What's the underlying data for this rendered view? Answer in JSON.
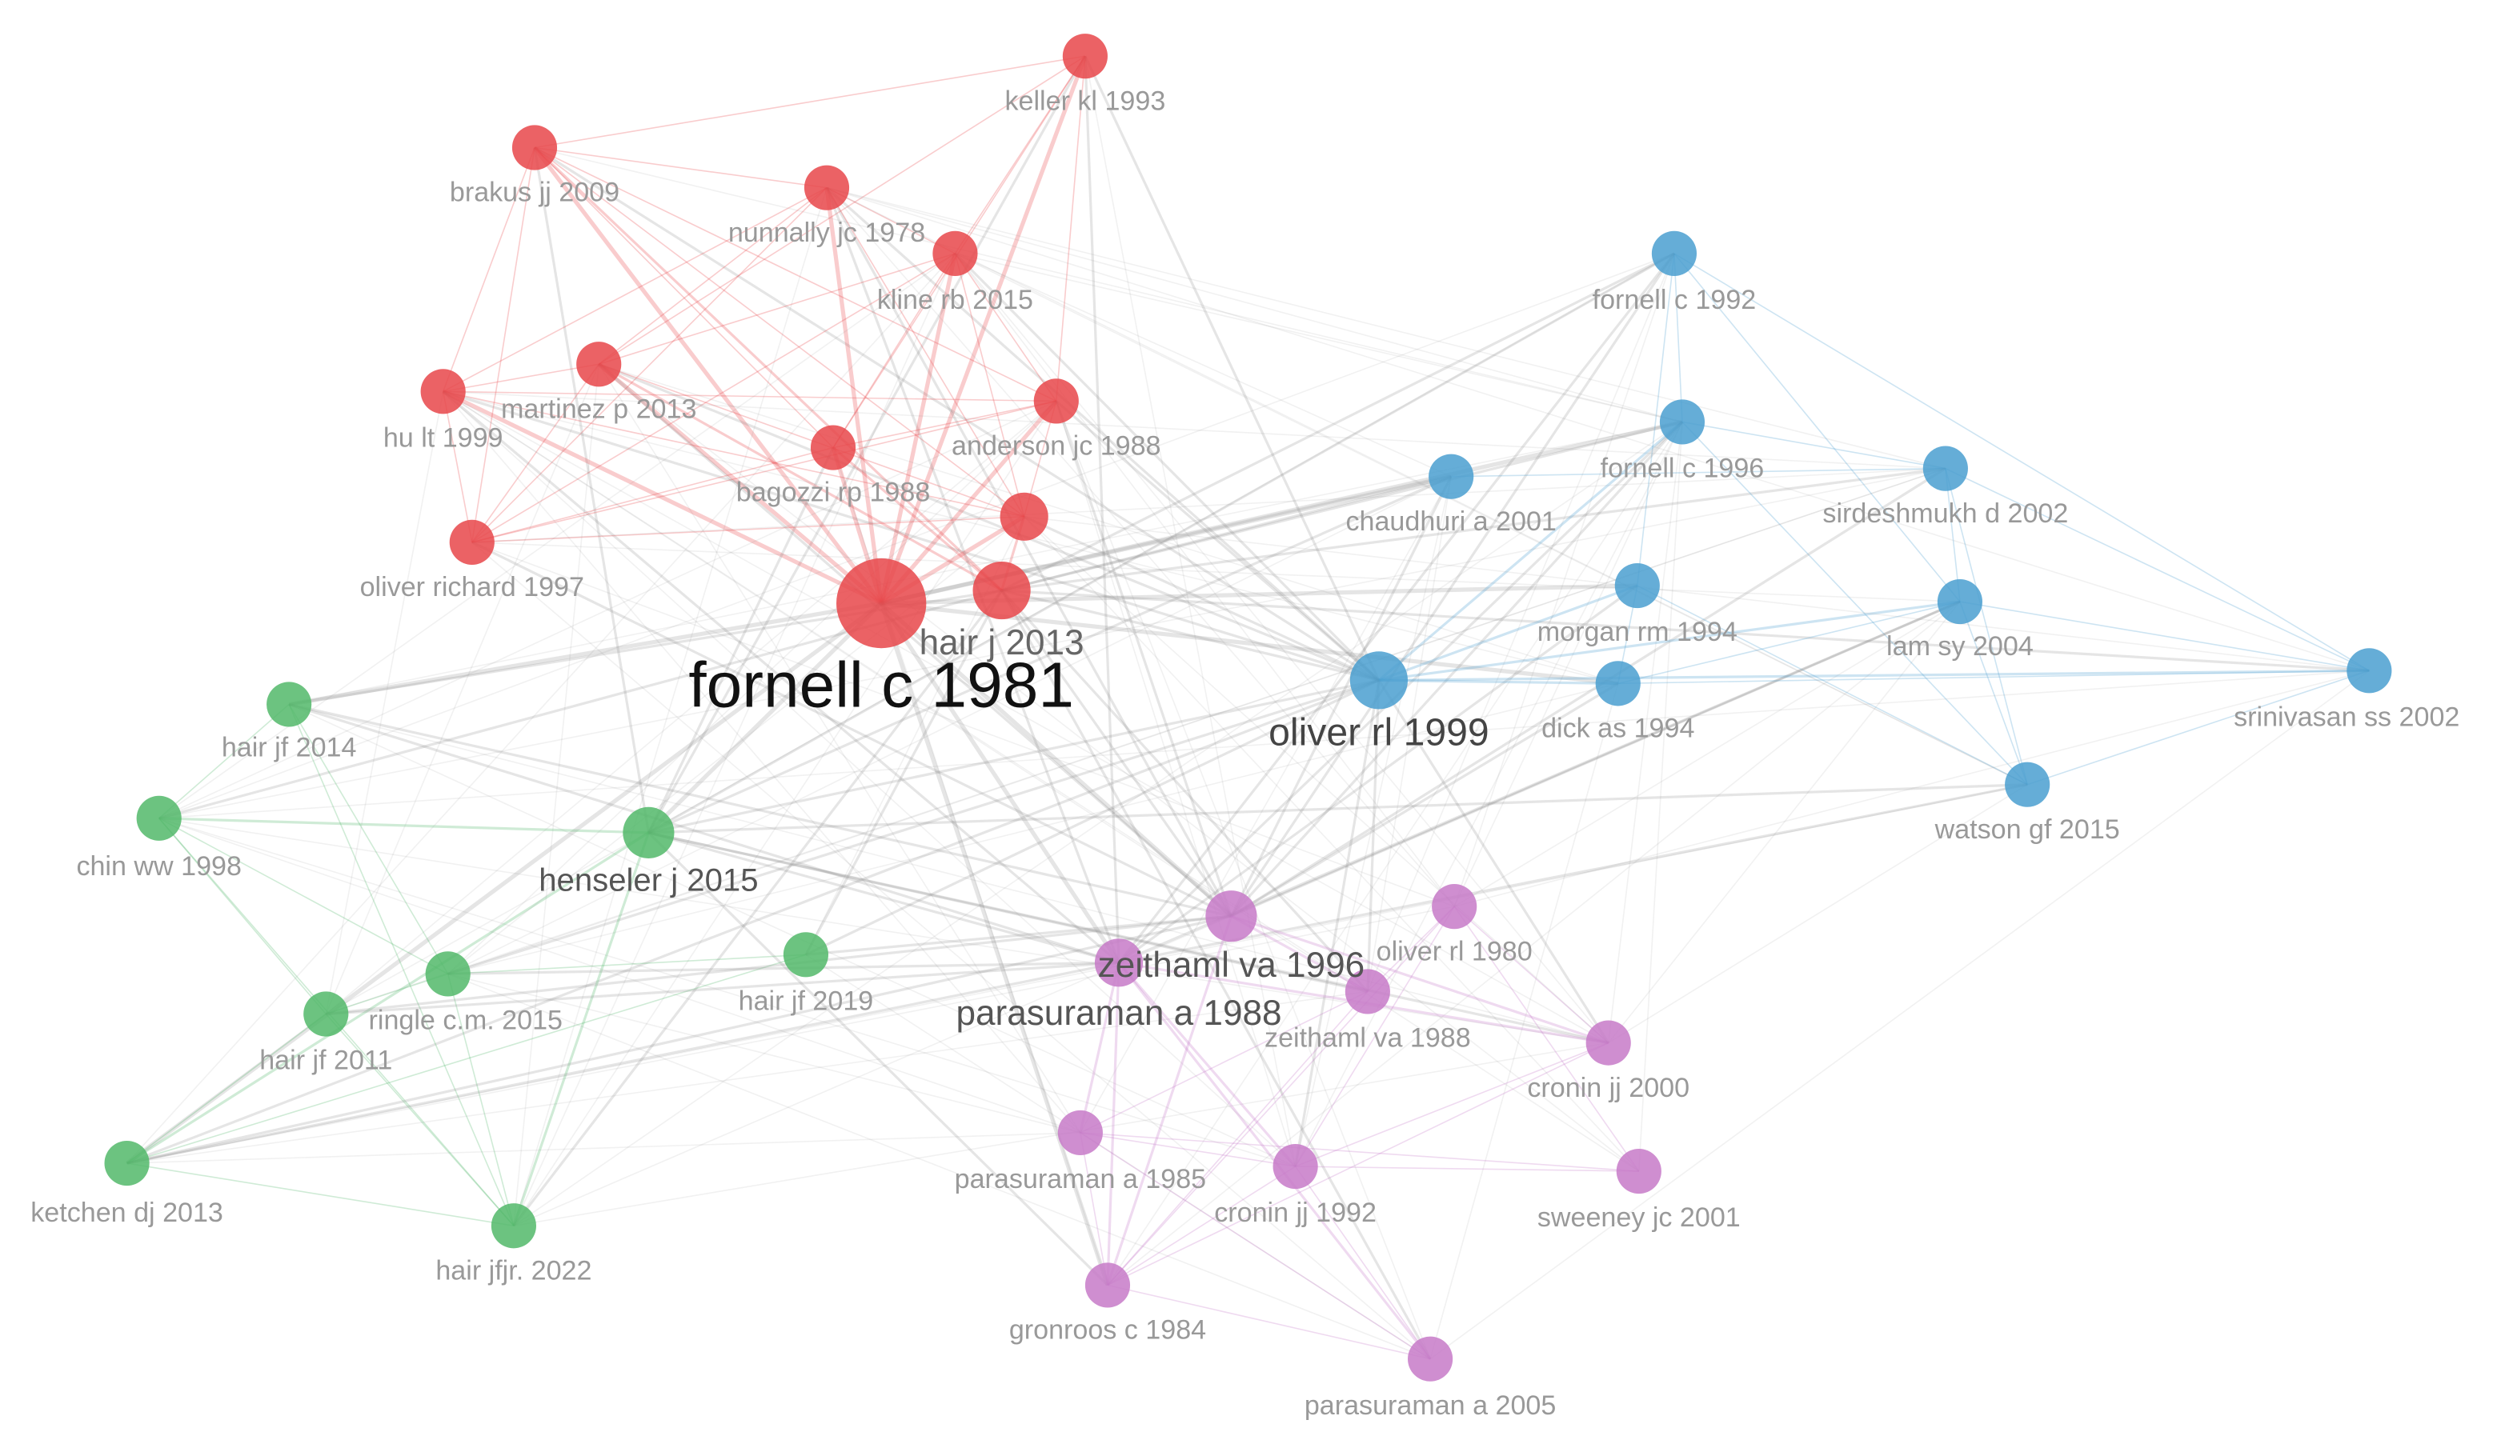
{
  "nodes": [
    {
      "label": "keller kl 1993"
    },
    {
      "label": "brakus jj 2009"
    },
    {
      "label": "nunnally jc 1978"
    },
    {
      "label": "kline rb 2015"
    },
    {
      "label": "martinez p 2013"
    },
    {
      "label": "hu lt 1999"
    },
    {
      "label": "anderson jc 1988"
    },
    {
      "label": "bagozzi rp 1988"
    },
    {
      "label": "oliver richard 1997"
    },
    {
      "label": "hair j 2013"
    },
    {
      "label": "fornell c 1981"
    },
    {
      "label": "fornell c 1992"
    },
    {
      "label": "fornell c 1996"
    },
    {
      "label": "sirdeshmukh d 2002"
    },
    {
      "label": "chaudhuri a 2001"
    },
    {
      "label": "morgan rm 1994"
    },
    {
      "label": "lam sy 2004"
    },
    {
      "label": "srinivasan ss 2002"
    },
    {
      "label": "oliver rl 1999"
    },
    {
      "label": "dick as 1994"
    },
    {
      "label": "watson gf 2015"
    },
    {
      "label": "hair jf 2014"
    },
    {
      "label": "chin ww 1998"
    },
    {
      "label": "henseler j 2015"
    },
    {
      "label": "hair jf 2019"
    },
    {
      "label": "ringle c.m. 2015"
    },
    {
      "label": "hair jf 2011"
    },
    {
      "label": "ketchen dj 2013"
    },
    {
      "label": "hair jfjr. 2022"
    },
    {
      "label": "zeithaml va 1996"
    },
    {
      "label": "oliver rl 1980"
    },
    {
      "label": "parasuraman a 1988"
    },
    {
      "label": "zeithaml va 1988"
    },
    {
      "label": "cronin jj 2000"
    },
    {
      "label": "parasuraman a 1985"
    },
    {
      "label": "cronin jj 1992"
    },
    {
      "label": "sweeney jc 2001"
    },
    {
      "label": "gronroos c 1984"
    },
    {
      "label": "parasuraman a 2005"
    }
  ]
}
